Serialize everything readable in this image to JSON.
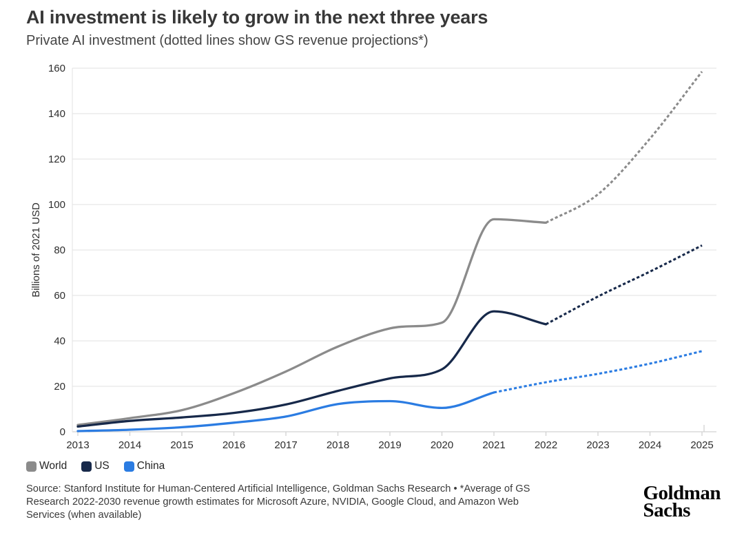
{
  "header": {},
  "chart_data": {
    "type": "line",
    "title": "AI investment is likely to grow in the next three years",
    "subtitle": "Private AI investment (dotted lines show GS revenue projections*)",
    "ylabel": "Billions of 2021 USD",
    "ylim": [
      0,
      160
    ],
    "ytick_step": 20,
    "grid": true,
    "legend_position": "bottom-left",
    "note": "dotted segments are GS revenue projections",
    "x": [
      2013,
      2014,
      2015,
      2016,
      2017,
      2018,
      2019,
      2020,
      2021,
      2022,
      2023,
      2024,
      2025
    ],
    "series": [
      {
        "name": "World",
        "color": "#8b8b8b",
        "solid_until": 2022,
        "values": [
          3,
          6,
          9.5,
          17,
          26.5,
          37.5,
          45.5,
          48,
          93.5,
          92,
          104.5,
          129,
          158.5
        ]
      },
      {
        "name": "US",
        "color": "#17294a",
        "solid_until": 2022,
        "values": [
          2.3,
          4.8,
          6.3,
          8.3,
          12,
          18,
          23.5,
          27.5,
          53,
          47.3,
          59.5,
          70.5,
          82
        ]
      },
      {
        "name": "China",
        "color": "#2b7ce2",
        "solid_until": 2021,
        "values": [
          0.3,
          0.9,
          2,
          4,
          6.7,
          12.2,
          13.5,
          10.5,
          17.3,
          21.8,
          25.5,
          30,
          35.5
        ]
      }
    ],
    "colors": {
      "gridline": "#e7e7e7",
      "axis": "#d2d2d2",
      "tick_text": "#2d2d2d"
    }
  },
  "footer": {
    "source_lines": [
      "Source: Stanford Institute for Human-Centered Artificial Intelligence, Goldman Sachs Research • *Average of GS",
      "Research 2022-2030 revenue growth estimates for Microsoft Azure, NVIDIA, Google Cloud, and Amazon Web",
      "Services (when available)"
    ],
    "logo": {
      "line1": "Goldman",
      "line2": "Sachs"
    }
  }
}
